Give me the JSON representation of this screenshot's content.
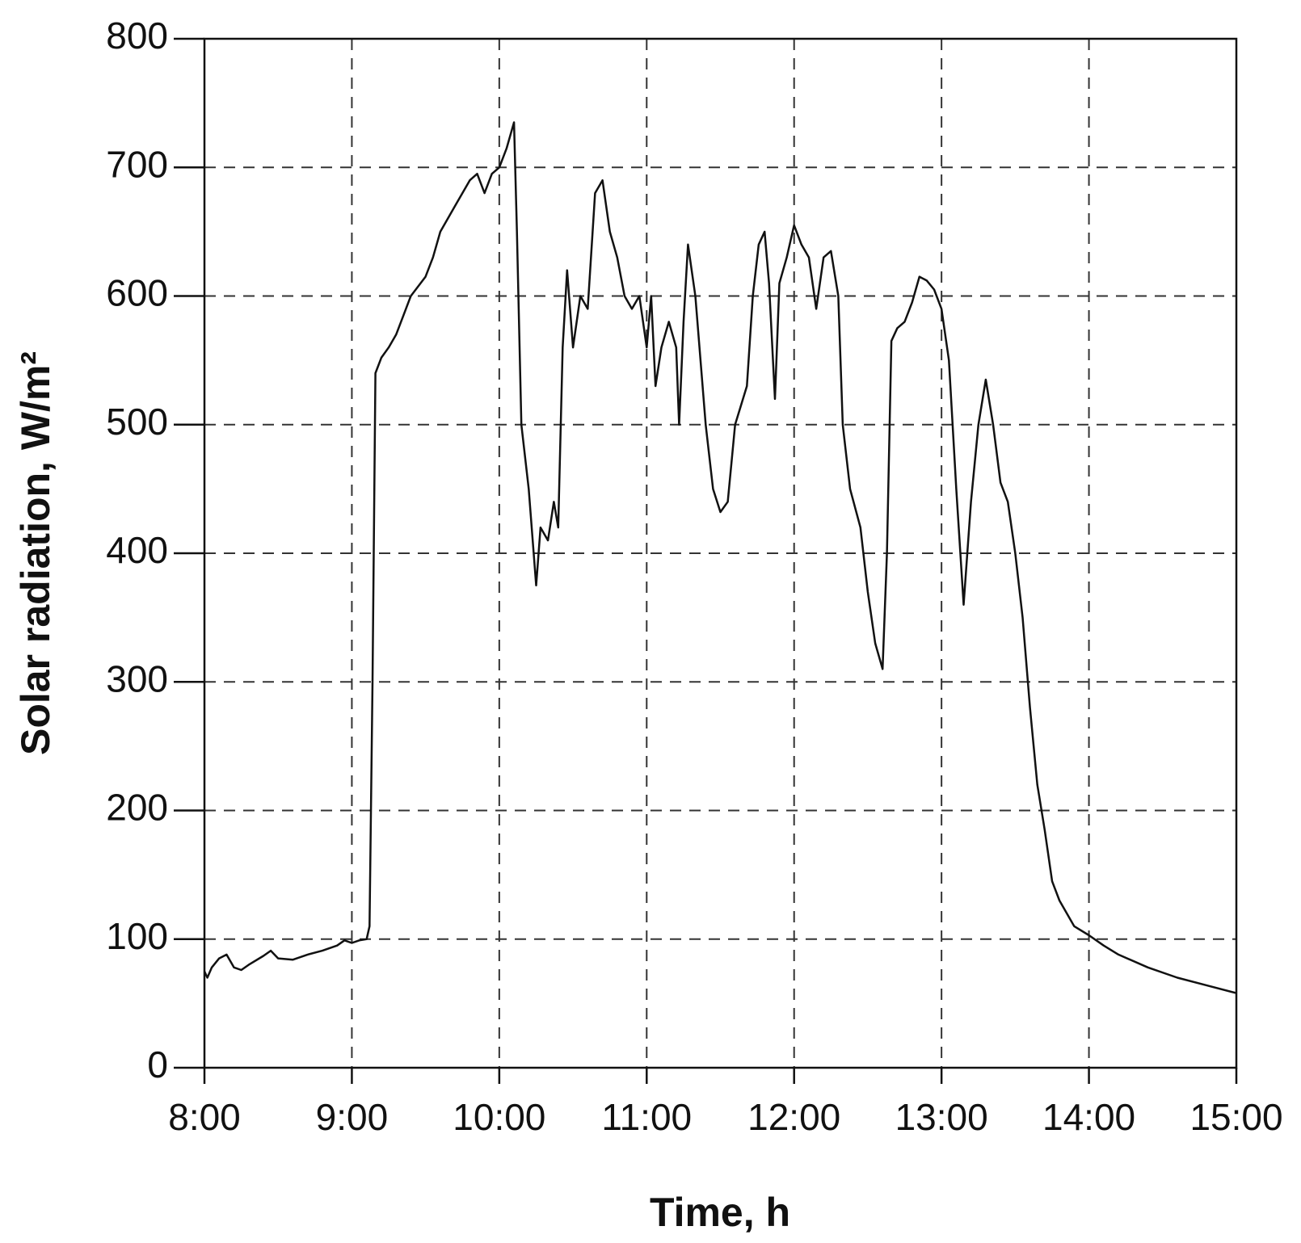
{
  "chart_data": {
    "type": "line",
    "xlabel": "Time, h",
    "ylabel": "Solar radiation, W/m²",
    "xlim": [
      8,
      15
    ],
    "xticks": [
      {
        "value": 8,
        "label": "8:00"
      },
      {
        "value": 9,
        "label": "9:00"
      },
      {
        "value": 10,
        "label": "10:00"
      },
      {
        "value": 11,
        "label": "11:00"
      },
      {
        "value": 12,
        "label": "12:00"
      },
      {
        "value": 13,
        "label": "13:00"
      },
      {
        "value": 14,
        "label": "14:00"
      },
      {
        "value": 15,
        "label": "15:00"
      }
    ],
    "ylim": [
      0,
      800
    ],
    "yticks": [
      0,
      100,
      200,
      300,
      400,
      500,
      600,
      700,
      800
    ],
    "grid": true,
    "x": [
      8.0,
      8.02,
      8.05,
      8.1,
      8.15,
      8.2,
      8.25,
      8.3,
      8.4,
      8.45,
      8.5,
      8.6,
      8.7,
      8.8,
      8.9,
      8.95,
      9.0,
      9.05,
      9.1,
      9.12,
      9.14,
      9.16,
      9.2,
      9.25,
      9.3,
      9.35,
      9.4,
      9.5,
      9.55,
      9.6,
      9.7,
      9.8,
      9.85,
      9.9,
      9.95,
      10.0,
      10.05,
      10.1,
      10.12,
      10.15,
      10.2,
      10.25,
      10.28,
      10.33,
      10.37,
      10.4,
      10.43,
      10.46,
      10.5,
      10.55,
      10.6,
      10.65,
      10.7,
      10.75,
      10.8,
      10.85,
      10.9,
      10.95,
      11.0,
      11.03,
      11.06,
      11.1,
      11.15,
      11.2,
      11.22,
      11.25,
      11.28,
      11.33,
      11.4,
      11.45,
      11.5,
      11.55,
      11.6,
      11.68,
      11.72,
      11.76,
      11.8,
      11.83,
      11.87,
      11.9,
      11.95,
      12.0,
      12.05,
      12.1,
      12.15,
      12.2,
      12.25,
      12.3,
      12.33,
      12.38,
      12.45,
      12.5,
      12.55,
      12.6,
      12.63,
      12.66,
      12.7,
      12.75,
      12.8,
      12.85,
      12.9,
      12.95,
      13.0,
      13.05,
      13.1,
      13.15,
      13.2,
      13.25,
      13.3,
      13.35,
      13.4,
      13.45,
      13.5,
      13.55,
      13.6,
      13.65,
      13.7,
      13.75,
      13.8,
      13.85,
      13.9,
      14.0,
      14.1,
      14.2,
      14.4,
      14.6,
      14.8,
      15.0
    ],
    "series": [
      {
        "name": "Solar radiation",
        "color": "#111111",
        "values": [
          75,
          70,
          78,
          85,
          88,
          78,
          76,
          80,
          87,
          91,
          85,
          84,
          88,
          91,
          95,
          99,
          97,
          99,
          100,
          110,
          300,
          540,
          552,
          560,
          570,
          585,
          600,
          615,
          630,
          650,
          670,
          690,
          695,
          680,
          695,
          700,
          715,
          735,
          650,
          500,
          450,
          375,
          420,
          410,
          440,
          420,
          560,
          620,
          560,
          600,
          590,
          680,
          690,
          650,
          630,
          600,
          590,
          600,
          560,
          600,
          530,
          560,
          580,
          560,
          500,
          580,
          640,
          600,
          500,
          450,
          432,
          440,
          500,
          530,
          600,
          640,
          650,
          610,
          520,
          610,
          630,
          655,
          640,
          630,
          590,
          630,
          635,
          600,
          500,
          450,
          420,
          370,
          330,
          310,
          400,
          565,
          575,
          580,
          595,
          615,
          612,
          605,
          590,
          550,
          450,
          360,
          440,
          500,
          535,
          500,
          455,
          440,
          400,
          350,
          280,
          220,
          185,
          145,
          130,
          120,
          110,
          103,
          95,
          88,
          78,
          70,
          64,
          58
        ]
      }
    ]
  }
}
